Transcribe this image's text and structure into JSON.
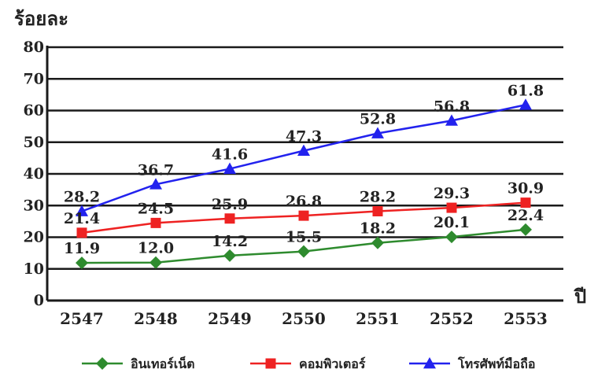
{
  "chart_data": {
    "type": "line",
    "title": "",
    "ylabel": "ร้อยละ",
    "xlabel": "ปี",
    "categories": [
      "2547",
      "2548",
      "2549",
      "2550",
      "2551",
      "2552",
      "2553"
    ],
    "ylim": [
      0,
      80
    ],
    "yticks": [
      "0",
      "10",
      "20",
      "30",
      "40",
      "50",
      "60",
      "70",
      "80"
    ],
    "grid": true,
    "legend_position": "bottom",
    "series": [
      {
        "name": "อินเทอร์เน็ต",
        "color": "#2e8b2e",
        "marker": "diamond",
        "values": [
          11.9,
          12.0,
          14.2,
          15.5,
          18.2,
          20.1,
          22.4
        ],
        "labels": [
          "11.9",
          "12.0",
          "14.2",
          "15.5",
          "18.2",
          "20.1",
          "22.4"
        ]
      },
      {
        "name": "คอมพิวเตอร์",
        "color": "#ee2222",
        "marker": "square",
        "values": [
          21.4,
          24.5,
          25.9,
          26.8,
          28.2,
          29.3,
          30.9
        ],
        "labels": [
          "21.4",
          "24.5",
          "25.9",
          "26.8",
          "28.2",
          "29.3",
          "30.9"
        ]
      },
      {
        "name": "โทรศัพท์มือถือ",
        "color": "#2222ee",
        "marker": "triangle",
        "values": [
          28.2,
          36.7,
          41.6,
          47.3,
          52.8,
          56.8,
          61.8
        ],
        "labels": [
          "28.2",
          "36.7",
          "41.6",
          "47.3",
          "52.8",
          "56.8",
          "61.8"
        ]
      }
    ]
  }
}
